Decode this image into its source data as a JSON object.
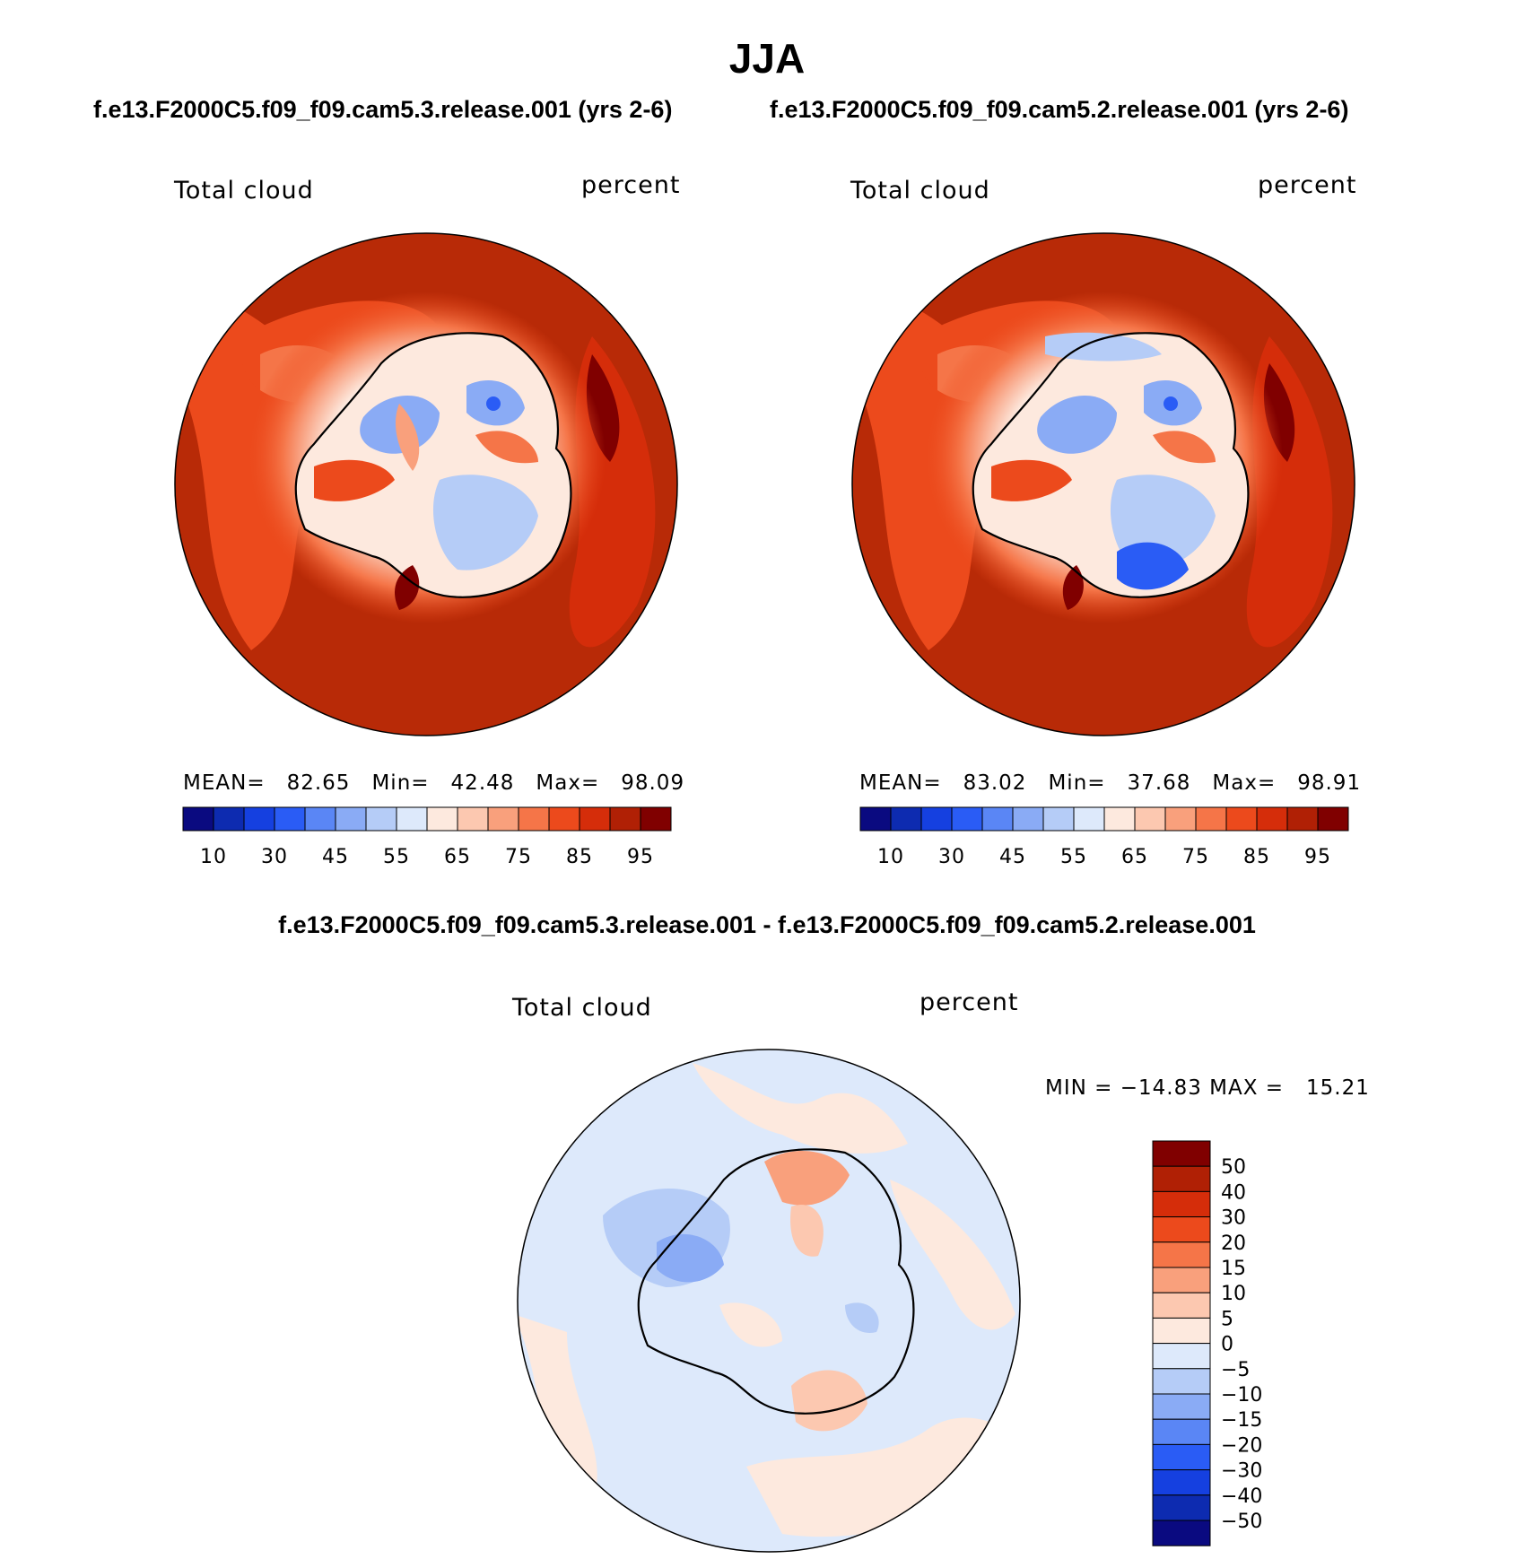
{
  "page_title": "JJA",
  "chart_data": [
    {
      "type": "heatmap",
      "projection": "south-polar-stereographic",
      "case_title": "f.e13.F2000C5.f09_f09.cam5.3.release.001 (yrs 2-6)",
      "variable": "Total cloud",
      "units": "percent",
      "stats": {
        "mean_label": "MEAN=",
        "mean": "82.65",
        "min_label": "Min=",
        "min": "42.48",
        "max_label": "Max=",
        "max": "98.09"
      },
      "levels": [
        10,
        20,
        30,
        40,
        45,
        50,
        55,
        60,
        65,
        70,
        75,
        80,
        85,
        90,
        95
      ],
      "tick_labels": [
        "10",
        "30",
        "45",
        "55",
        "65",
        "75",
        "85",
        "95"
      ],
      "colors": [
        "#0a0a80",
        "#0d2bb0",
        "#1540e0",
        "#2a5cf5",
        "#5a86f5",
        "#8aabf5",
        "#b5ccf7",
        "#dde9fb",
        "#fde9de",
        "#fcc8b0",
        "#f9a07c",
        "#f57548",
        "#ec4a1c",
        "#d52d0a",
        "#b02005",
        "#800000"
      ]
    },
    {
      "type": "heatmap",
      "projection": "south-polar-stereographic",
      "case_title": "f.e13.F2000C5.f09_f09.cam5.2.release.001 (yrs 2-6)",
      "variable": "Total cloud",
      "units": "percent",
      "stats": {
        "mean_label": "MEAN=",
        "mean": "83.02",
        "min_label": "Min=",
        "min": "37.68",
        "max_label": "Max=",
        "max": "98.91"
      },
      "levels": [
        10,
        20,
        30,
        40,
        45,
        50,
        55,
        60,
        65,
        70,
        75,
        80,
        85,
        90,
        95
      ],
      "tick_labels": [
        "10",
        "30",
        "45",
        "55",
        "65",
        "75",
        "85",
        "95"
      ],
      "colors": [
        "#0a0a80",
        "#0d2bb0",
        "#1540e0",
        "#2a5cf5",
        "#5a86f5",
        "#8aabf5",
        "#b5ccf7",
        "#dde9fb",
        "#fde9de",
        "#fcc8b0",
        "#f9a07c",
        "#f57548",
        "#ec4a1c",
        "#d52d0a",
        "#b02005",
        "#800000"
      ]
    },
    {
      "type": "heatmap",
      "projection": "south-polar-stereographic",
      "case_title": "f.e13.F2000C5.f09_f09.cam5.3.release.001 - f.e13.F2000C5.f09_f09.cam5.2.release.001",
      "variable": "Total cloud",
      "units": "percent",
      "stats_text": "MIN = −14.83 MAX =   15.21",
      "levels": [
        50,
        40,
        30,
        20,
        15,
        10,
        5,
        0,
        -5,
        -10,
        -15,
        -20,
        -30,
        -40,
        -50
      ],
      "tick_labels": [
        "50",
        "40",
        "30",
        "20",
        "15",
        "10",
        "5",
        "0",
        "−5",
        "−10",
        "−15",
        "−20",
        "−30",
        "−40",
        "−50"
      ],
      "colors": [
        "#800000",
        "#b02005",
        "#d52d0a",
        "#ec4a1c",
        "#f57548",
        "#f9a07c",
        "#fcc8b0",
        "#fde9de",
        "#dde9fb",
        "#b5ccf7",
        "#8aabf5",
        "#5a86f5",
        "#2a5cf5",
        "#1540e0",
        "#0d2bb0",
        "#0a0a80"
      ]
    }
  ]
}
